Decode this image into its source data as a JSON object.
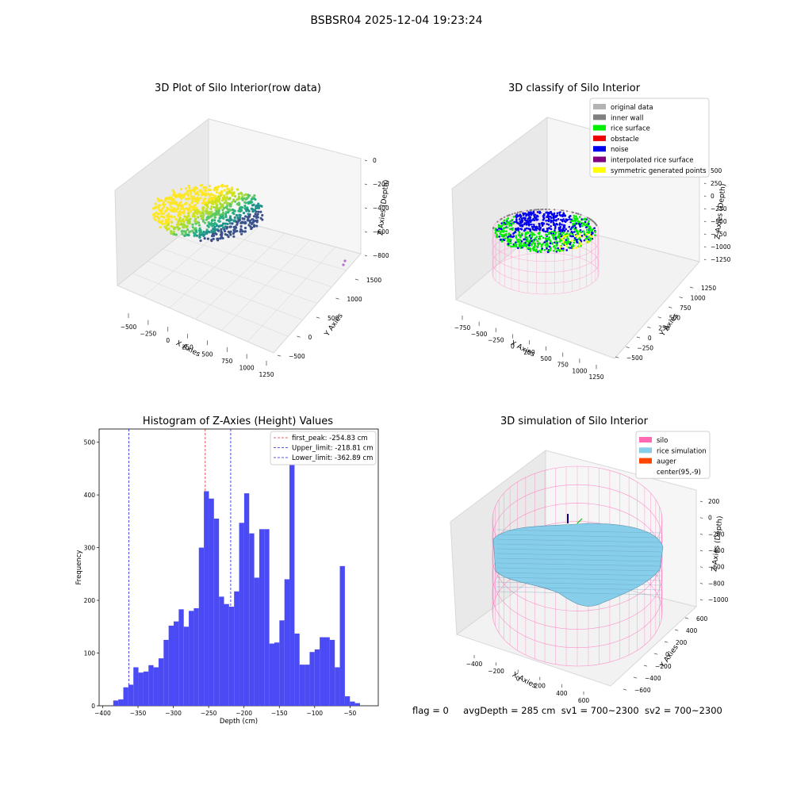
{
  "figure": {
    "suptitle": "BSBSR04 2025-12-04 19:23:24",
    "colors": {
      "histogram_bar": "#4b4bf5",
      "first_peak_line": "#e03030",
      "limit_lines": "#2020e0"
    },
    "bottom_text": {
      "flag": "flag = 0",
      "avgDepth": "avgDepth = 285 cm",
      "sv1": "sv1 = 700~2300",
      "sv2": "sv2 = 700~2300"
    }
  },
  "chart_data": [
    {
      "type": "scatter",
      "subtype": "3d",
      "title": "3D Plot of Silo Interior(row data)",
      "xlabel": "X Axies",
      "ylabel": "Y Axies",
      "zlabel": "Z Axies (Depth)",
      "x_ticks": [
        "−500",
        "−250",
        "0",
        "250",
        "500",
        "750",
        "1000",
        "1250"
      ],
      "y_ticks": [
        "−500",
        "0",
        "500",
        "1000",
        "1500"
      ],
      "z_ticks": [
        "0",
        "−200",
        "−400",
        "−600",
        "−800"
      ],
      "colormap": "viridis"
    },
    {
      "type": "scatter",
      "subtype": "3d",
      "title": "3D classify of Silo Interior",
      "xlabel": "X Axies",
      "ylabel": "Y Axies",
      "zlabel": "Z Axies (Depth)",
      "x_ticks": [
        "−750",
        "−500",
        "−250",
        "0",
        "250",
        "500",
        "750",
        "1000",
        "1250"
      ],
      "y_ticks": [
        "−500",
        "−250",
        "0",
        "250",
        "500",
        "750",
        "1000",
        "1250"
      ],
      "z_ticks": [
        "500",
        "250",
        "0",
        "−250",
        "−500",
        "−750",
        "−1000",
        "−1250"
      ],
      "legend": [
        {
          "label": "original data",
          "color": "#b3b3b3"
        },
        {
          "label": "inner wall",
          "color": "#808080"
        },
        {
          "label": "rice surface",
          "color": "#00ee00"
        },
        {
          "label": "obstacle",
          "color": "#ee0000"
        },
        {
          "label": "noise",
          "color": "#0000ee"
        },
        {
          "label": "interpolated rice surface",
          "color": "#800080"
        },
        {
          "label": "symmetric generated points",
          "color": "#ffff00"
        }
      ],
      "legend_position": "top-right"
    },
    {
      "type": "bar",
      "subtype": "histogram",
      "title": "Histogram of Z-Axies (Height) Values",
      "xlabel": "Depth (cm)",
      "ylabel": "Frequency",
      "xlim": [
        -405,
        -10
      ],
      "ylim": [
        0,
        525
      ],
      "x_ticks": [
        -400,
        -350,
        -300,
        -250,
        -200,
        -150,
        -100,
        -50
      ],
      "x_tick_labels": [
        "−400",
        "−350",
        "−300",
        "−250",
        "−200",
        "−150",
        "−100",
        "−50"
      ],
      "y_ticks": [
        0,
        100,
        200,
        300,
        400,
        500
      ],
      "bin_width": 7.125,
      "bin_start": -385,
      "values": [
        10,
        12,
        35,
        40,
        73,
        63,
        65,
        77,
        73,
        90,
        125,
        152,
        160,
        183,
        150,
        180,
        185,
        300,
        407,
        393,
        355,
        207,
        193,
        188,
        217,
        347,
        403,
        327,
        243,
        335,
        335,
        118,
        120,
        162,
        240,
        520,
        137,
        78,
        78,
        102,
        107,
        130,
        130,
        125,
        73,
        265,
        18,
        8,
        5,
        0
      ],
      "vlines": [
        {
          "x": -254.83,
          "label": "first_peak: -254.83 cm",
          "style": "dashed",
          "color": "#e03030"
        },
        {
          "x": -218.81,
          "label": "Upper_limit: -218.81 cm",
          "style": "dashed",
          "color": "#2020e0"
        },
        {
          "x": -362.89,
          "label": "Lower_limit: -362.89 cm",
          "style": "dashed",
          "color": "#2020e0"
        }
      ],
      "legend_position": "top-right"
    },
    {
      "type": "area",
      "subtype": "3d-surface",
      "title": "3D simulation of Silo Interior",
      "xlabel": "X Axies",
      "ylabel": "Y Axies",
      "zlabel": "Z Axies (Depth)",
      "x_ticks": [
        "−400",
        "−200",
        "0",
        "200",
        "400",
        "600"
      ],
      "y_ticks": [
        "−600",
        "−400",
        "−200",
        "0",
        "200",
        "400",
        "600"
      ],
      "z_ticks": [
        "200",
        "0",
        "−200",
        "−400",
        "−600",
        "−800",
        "−1000"
      ],
      "legend": [
        {
          "label": "silo",
          "color": "#ff69b4"
        },
        {
          "label": "rice simulation",
          "color": "#87ceeb"
        },
        {
          "label": "auger",
          "color": "#ff4500"
        },
        {
          "label": "center(95,-9)",
          "color": ""
        }
      ],
      "legend_position": "top-right"
    }
  ]
}
